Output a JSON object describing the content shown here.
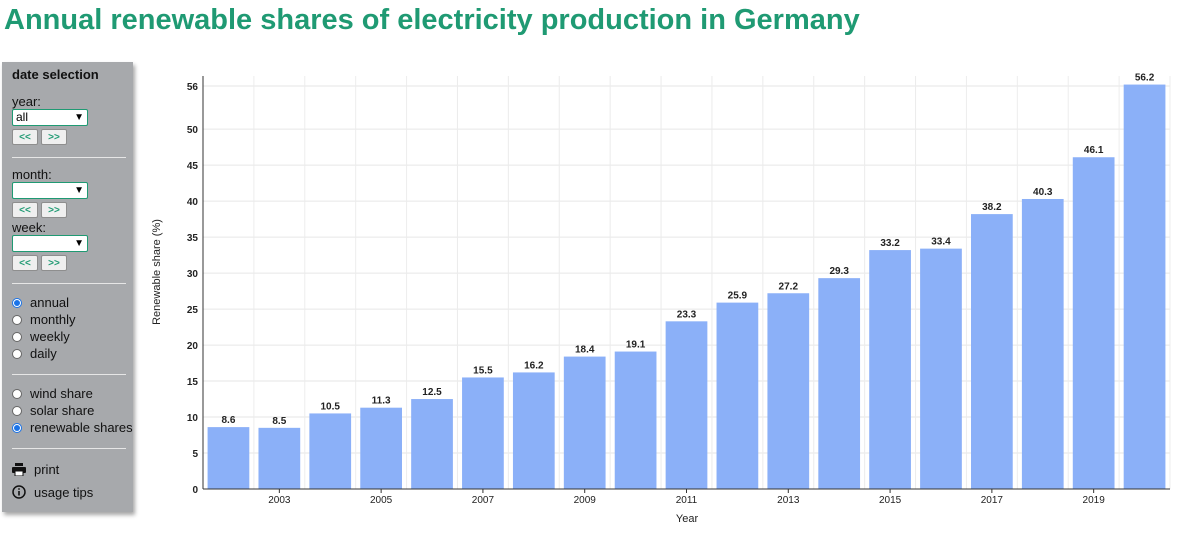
{
  "page": {
    "title": "Annual renewable shares of electricity production in Germany"
  },
  "sidebar": {
    "heading": "date selection",
    "year_label": "year:",
    "year_value": "all",
    "month_label": "month:",
    "month_value": "",
    "week_label": "week:",
    "week_value": "",
    "prev_label": "<<",
    "next_label": ">>",
    "resolution_options": [
      {
        "label": "annual",
        "checked": true
      },
      {
        "label": "monthly",
        "checked": false
      },
      {
        "label": "weekly",
        "checked": false
      },
      {
        "label": "daily",
        "checked": false
      }
    ],
    "share_options": [
      {
        "label": "wind share",
        "checked": false
      },
      {
        "label": "solar share",
        "checked": false
      },
      {
        "label": "renewable shares",
        "checked": true
      }
    ],
    "print_label": "print",
    "tips_label": "usage tips",
    "icons": {
      "print": "printer-icon",
      "tips": "info-icon"
    }
  },
  "chart_data": {
    "type": "bar",
    "title": "",
    "xlabel": "Year",
    "ylabel": "Renewable share (%)",
    "ylim": [
      0,
      56
    ],
    "y_ticks": [
      0,
      5,
      10,
      15,
      20,
      25,
      30,
      35,
      40,
      45,
      50,
      56
    ],
    "x_tick_labels": [
      "2003",
      "2005",
      "2007",
      "2009",
      "2011",
      "2013",
      "2015",
      "2017",
      "2019"
    ],
    "categories": [
      "2002",
      "2003",
      "2004",
      "2005",
      "2006",
      "2007",
      "2008",
      "2009",
      "2010",
      "2011",
      "2012",
      "2013",
      "2014",
      "2015",
      "2016",
      "2017",
      "2018",
      "2019",
      "2020"
    ],
    "values": [
      8.6,
      8.5,
      10.5,
      11.3,
      12.5,
      15.5,
      16.2,
      18.4,
      19.1,
      23.3,
      25.9,
      27.2,
      29.3,
      33.2,
      33.4,
      38.2,
      40.3,
      46.1,
      56.2
    ],
    "bar_color": "#8bb0f8",
    "grid": true,
    "data_labels": true
  }
}
